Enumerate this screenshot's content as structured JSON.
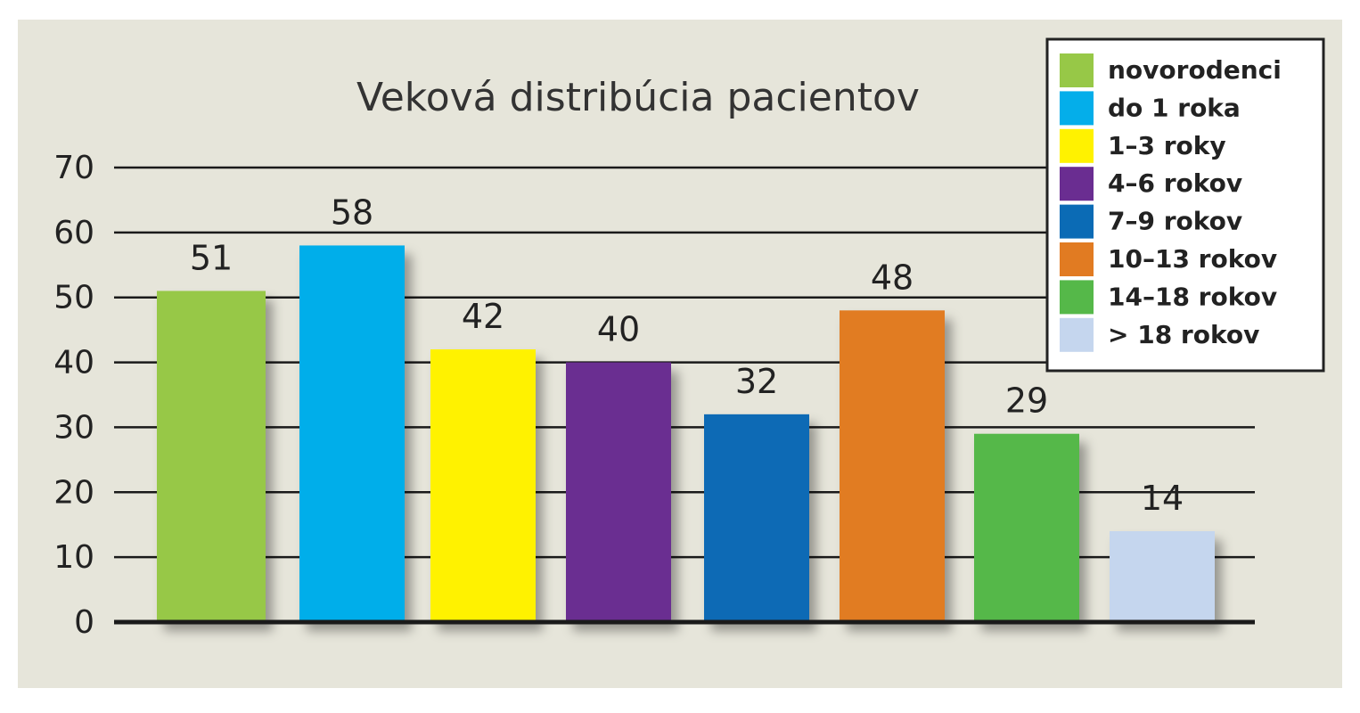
{
  "colors": {
    "panel_background": "#e6e5da",
    "gridline": "#1a1a1a",
    "legend_background": "#ffffff",
    "legend_border": "#222222"
  },
  "chart_data": {
    "type": "bar",
    "title": "Veková distribúcia pacientov",
    "xlabel": "",
    "ylabel": "",
    "ylim": [
      0,
      70
    ],
    "y_ticks": [
      "0",
      "10",
      "20",
      "30",
      "40",
      "50",
      "60",
      "70"
    ],
    "grid": true,
    "legend_position": "top-right",
    "categories": [
      "novorodenci",
      "do 1 roka",
      "1–3 roky",
      "4–6 rokov",
      "7–9 rokov",
      "10–13 rokov",
      "14–18 rokov",
      "> 18 rokov"
    ],
    "values": [
      51,
      58,
      42,
      40,
      32,
      48,
      29,
      14
    ],
    "value_labels": [
      "51",
      "58",
      "42",
      "40",
      "32",
      "48",
      "29",
      "14"
    ],
    "bar_colors": [
      "#97c847",
      "#04aeea",
      "#fff200",
      "#6a2d91",
      "#0b6bb5",
      "#e17b22",
      "#55b849",
      "#c5d6ee"
    ]
  }
}
